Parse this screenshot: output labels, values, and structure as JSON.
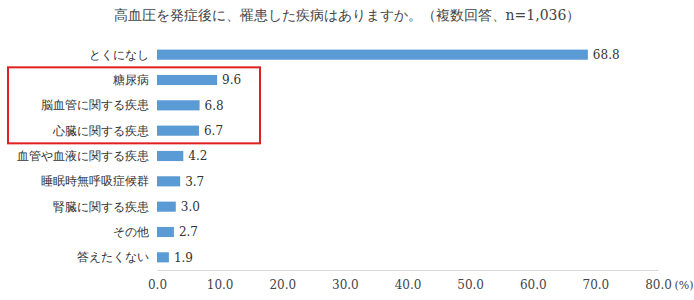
{
  "chart_data": {
    "type": "bar",
    "orientation": "horizontal",
    "title": "高血圧を発症後に、罹患した疾病はありますか。（複数回答、n=1,036）",
    "xlabel": "(%)",
    "categories": [
      "とくになし",
      "糖尿病",
      "脳血管に関する疾患",
      "心臓に関する疾患",
      "血管や血液に関する疾患",
      "睡眠時無呼吸症候群",
      "腎臓に関する疾患",
      "その他",
      "答えたくない"
    ],
    "values": [
      68.8,
      9.6,
      6.8,
      6.7,
      4.2,
      3.7,
      3.0,
      2.7,
      1.9
    ],
    "value_labels": [
      "68.8",
      "9.6",
      "6.8",
      "6.7",
      "4.2",
      "3.7",
      "3.0",
      "2.7",
      "1.9"
    ],
    "color": "#5b9bd5",
    "xlim": [
      0,
      80
    ],
    "xticks": [
      {
        "value": 0,
        "label": "0.0"
      },
      {
        "value": 10,
        "label": "10.0"
      },
      {
        "value": 20,
        "label": "20.0"
      },
      {
        "value": 30,
        "label": "30.0"
      },
      {
        "value": 40,
        "label": "40.0"
      },
      {
        "value": 50,
        "label": "50.0"
      },
      {
        "value": 60,
        "label": "60.0"
      },
      {
        "value": 70,
        "label": "70.0"
      },
      {
        "value": 80,
        "label": "80.0"
      }
    ],
    "grid": false,
    "data_labels": true
  }
}
